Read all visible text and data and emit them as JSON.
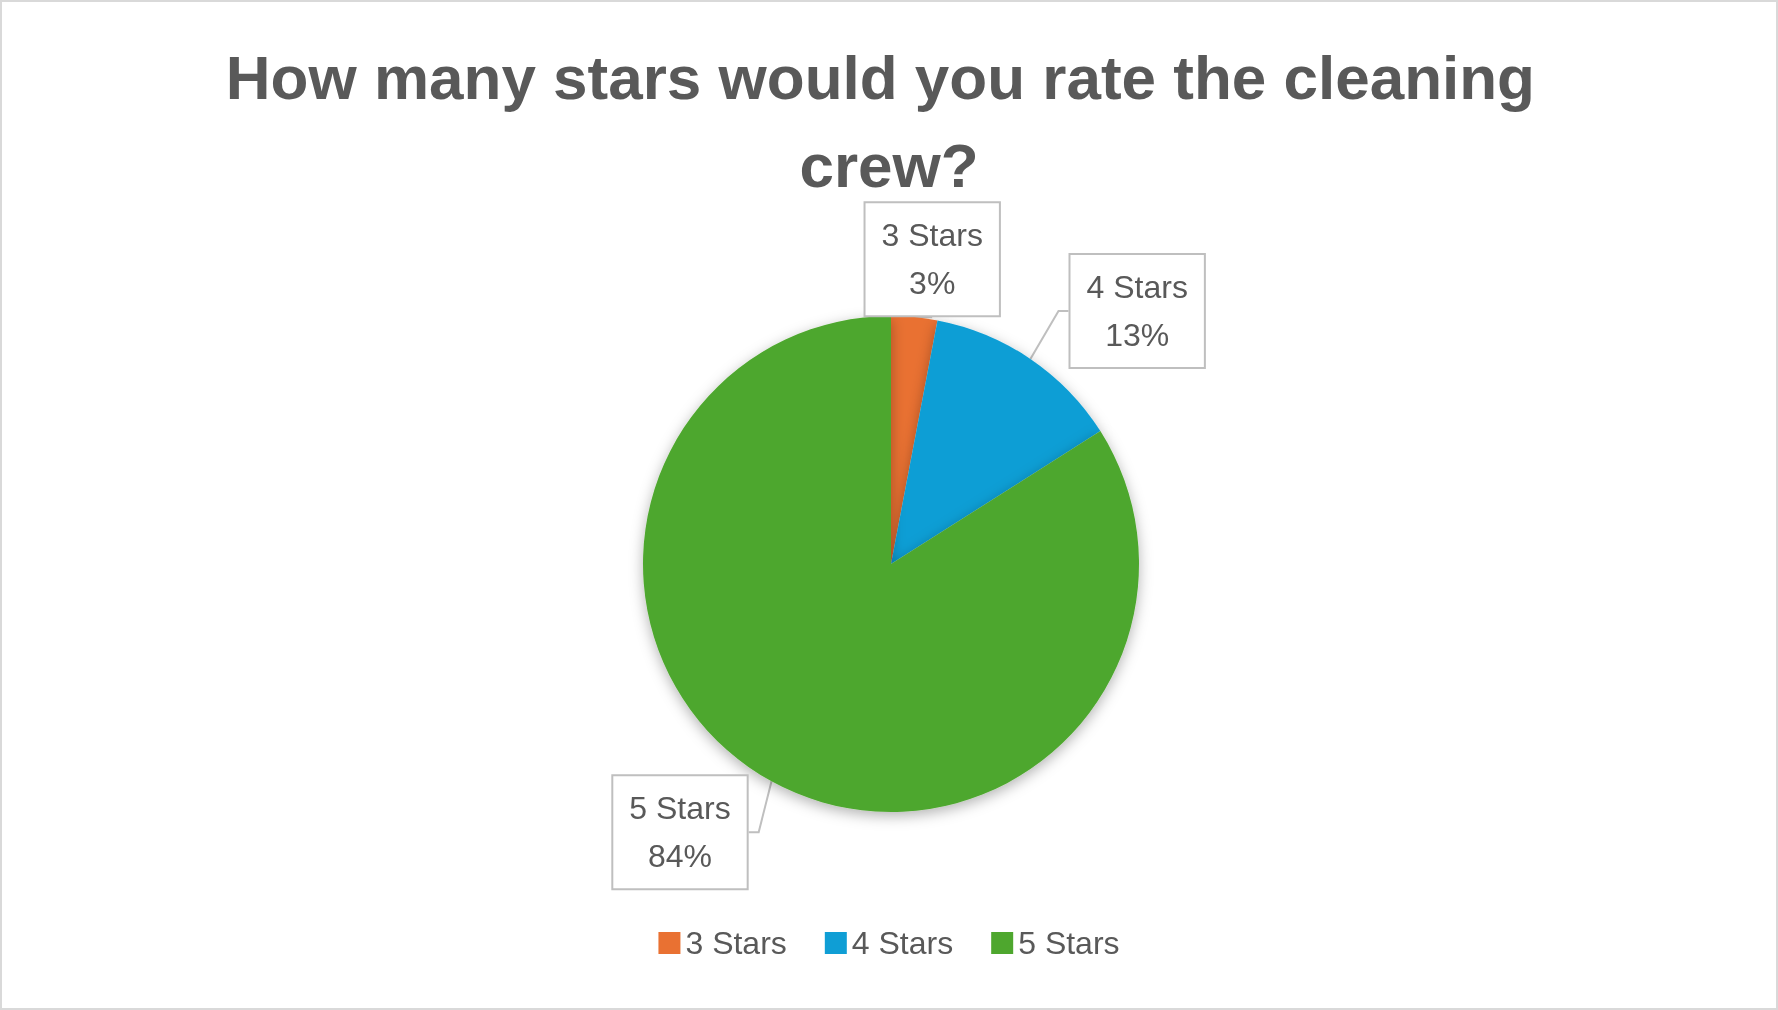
{
  "chart_data": {
    "type": "pie",
    "title": "How many stars would you rate the cleaning crew?",
    "categories": [
      "3 Stars",
      "4 Stars",
      "5 Stars"
    ],
    "values": [
      3,
      13,
      84
    ],
    "colors": [
      "#e97132",
      "#0f9ed5",
      "#4ea72e"
    ],
    "value_labels": [
      "3%",
      "13%",
      "84%"
    ],
    "legend": "bottom"
  }
}
